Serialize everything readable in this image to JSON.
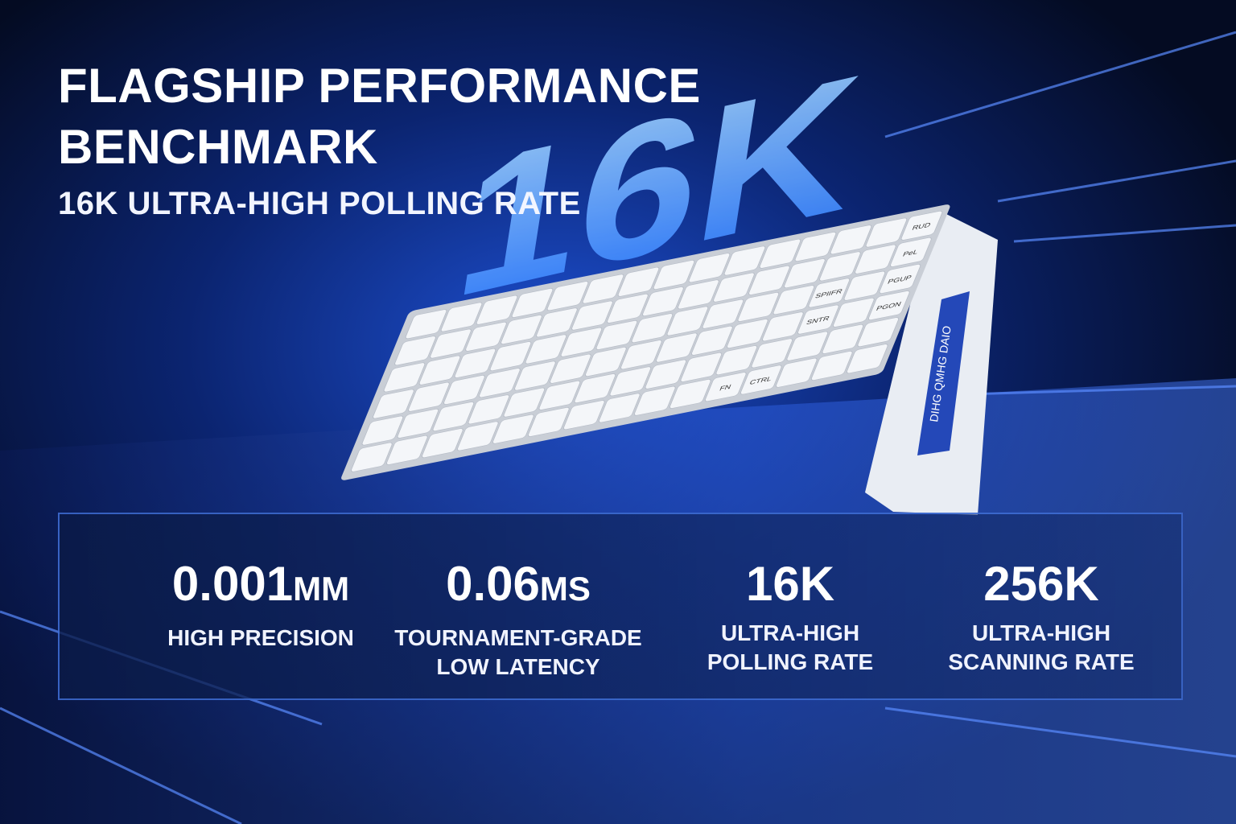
{
  "header": {
    "title_lines": [
      "FLAGSHIP PERFORMANCE",
      "BENCHMARK"
    ],
    "subtitle": "16K ULTRA-HIGH POLLING RATE"
  },
  "backdrop_text": "16K",
  "keyboard": {
    "keys": [
      "RUD",
      "PeL",
      "PGUP",
      "PGON",
      "SPIIFR",
      "SNTR",
      "FN",
      "CTRL"
    ],
    "side_text": "DIHG QMHG DAIO"
  },
  "stats": [
    {
      "value": "0.001",
      "unit": "MM",
      "label_lines": [
        "HIGH PRECISION"
      ]
    },
    {
      "value": "0.06",
      "unit": "MS",
      "label_lines": [
        "TOURNAMENT-GRADE",
        "LOW LATENCY"
      ]
    },
    {
      "value": "16K",
      "unit": "",
      "label_lines": [
        "ULTRA-HIGH",
        "POLLING RATE"
      ]
    },
    {
      "value": "256K",
      "unit": "",
      "label_lines": [
        "ULTRA-HIGH",
        "SCANNING RATE"
      ]
    }
  ]
}
